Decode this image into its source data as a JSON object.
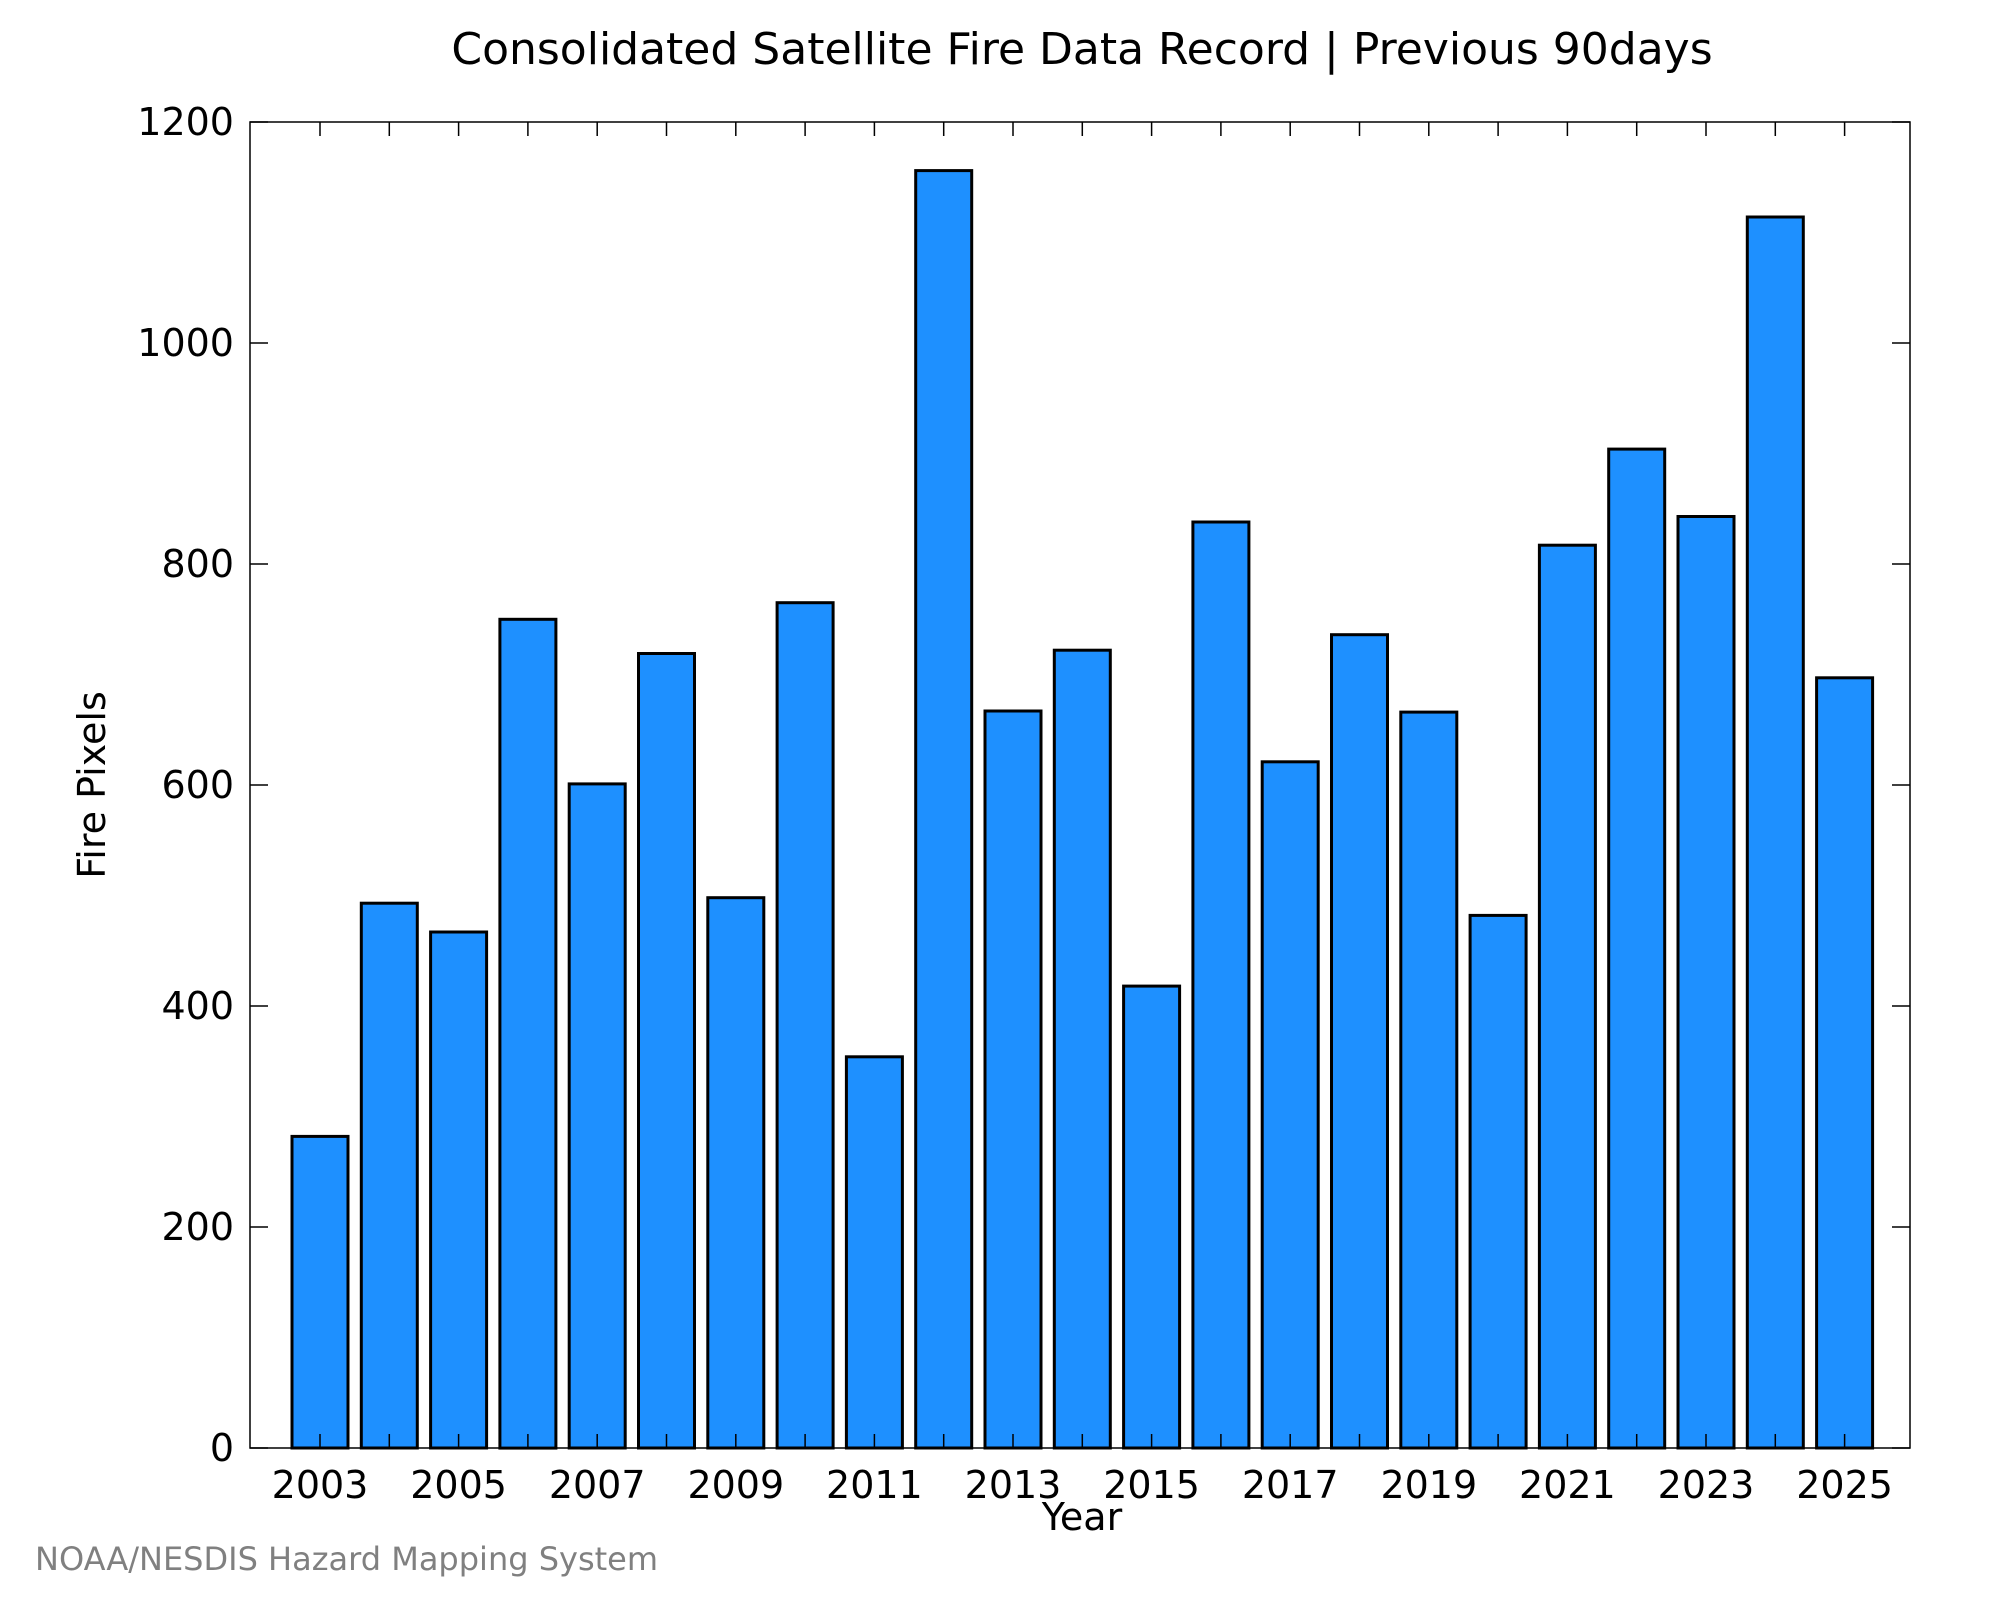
{
  "credit": "NOAA/NESDIS Hazard Mapping System",
  "chart_data": {
    "type": "bar",
    "title": "Consolidated Satellite Fire Data Record | Previous 90days",
    "xlabel": "Year",
    "ylabel": "Fire Pixels",
    "categories": [
      "2003",
      "2004",
      "2005",
      "2006",
      "2007",
      "2008",
      "2009",
      "2010",
      "2011",
      "2012",
      "2013",
      "2014",
      "2015",
      "2016",
      "2017",
      "2018",
      "2019",
      "2020",
      "2021",
      "2022",
      "2023",
      "2024",
      "2025"
    ],
    "values": [
      282,
      493,
      467,
      750,
      601,
      719,
      498,
      765,
      354,
      1156,
      667,
      722,
      418,
      838,
      621,
      736,
      666,
      482,
      817,
      904,
      843,
      1114,
      697
    ],
    "x_tick_labels": [
      "2003",
      "2005",
      "2007",
      "2009",
      "2011",
      "2013",
      "2015",
      "2017",
      "2019",
      "2021",
      "2023",
      "2025"
    ],
    "y_ticks": [
      0,
      200,
      400,
      600,
      800,
      1000,
      1200
    ],
    "ylim": [
      0,
      1200
    ],
    "grid": false,
    "colors": {
      "bar_fill": "#1e90ff",
      "bar_stroke": "#000000",
      "axis": "#000000",
      "credit_text": "#808080"
    }
  }
}
